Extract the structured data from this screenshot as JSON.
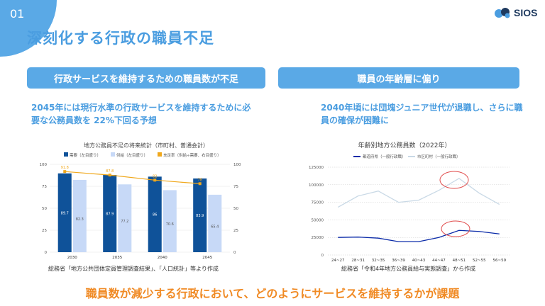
{
  "slide": {
    "number": "01",
    "title": "深刻化する行政の職員不足",
    "logo_text": "SIOS"
  },
  "left": {
    "banner": "行政サービスを維持するための職員数が不足",
    "lead": "2045年には現行水準の行政サービスを維持するために必要な公務員数を 22%下回る予想",
    "source": "総務省「地方公共団体定員管理調査結果」、「人口統計」等より作成"
  },
  "right": {
    "banner": "職員の年齢層に偏り",
    "lead": "2040年頃には団塊ジュニア世代が退職し、さらに職員の確保が困難に",
    "source": "総務省「令和4年地方公務員給与実態調査」から作成"
  },
  "conclusion": "職員数が減少する行政において、どのようにサービスを維持するかが課題",
  "colors": {
    "accent": "#4a9de0",
    "banner": "#5aa9e6",
    "orange": "#f08a24",
    "bar_dark": "#0f5299",
    "bar_light": "#c7d9f7",
    "line_light": "#c9d9e6"
  },
  "chart_data": [
    {
      "type": "bar",
      "title": "地方公務員不足の将来統計（市町村、普通会計）",
      "categories": [
        "2030",
        "2035",
        "2040",
        "2045"
      ],
      "series": [
        {
          "name": "需要（左目盛り）",
          "values": [
            89.7,
            87.9,
            86,
            83.9
          ],
          "labels": [
            "89.7",
            "87.9",
            "86",
            "83.9"
          ]
        },
        {
          "name": "供給（左目盛り）",
          "values": [
            82.3,
            77.2,
            70.6,
            65.4
          ],
          "labels": [
            "82.3",
            "77.2",
            "70.6",
            "65.4"
          ]
        },
        {
          "name": "充足率（供給÷需要、右目盛り）",
          "values": [
            91.8,
            87.8,
            82,
            78
          ],
          "labels": [
            "91.8",
            "87.8",
            "82",
            "78"
          ]
        }
      ],
      "ylim": [
        0,
        100
      ],
      "yticks": [
        "0",
        "25",
        "50",
        "75",
        "100"
      ],
      "legend_position": "top"
    },
    {
      "type": "line",
      "title": "年齢別地方公務員数（2022年）",
      "categories": [
        "24~27",
        "28~31",
        "32~35",
        "36~39",
        "40~43",
        "44~47",
        "48~51",
        "52~55",
        "56~59"
      ],
      "series": [
        {
          "name": "都道府県（一般行政職）",
          "values": [
            25000,
            25500,
            24000,
            19000,
            19000,
            25000,
            35000,
            33500,
            30000
          ]
        },
        {
          "name": "市区町村（一般行政職）",
          "values": [
            68000,
            84000,
            91000,
            75000,
            78000,
            92000,
            109000,
            88000,
            72000
          ]
        }
      ],
      "ylim": [
        0,
        125000
      ],
      "yticks": [
        "0",
        "25000",
        "50000",
        "75000",
        "100000",
        "125000"
      ],
      "legend_position": "top",
      "grid": true
    }
  ]
}
